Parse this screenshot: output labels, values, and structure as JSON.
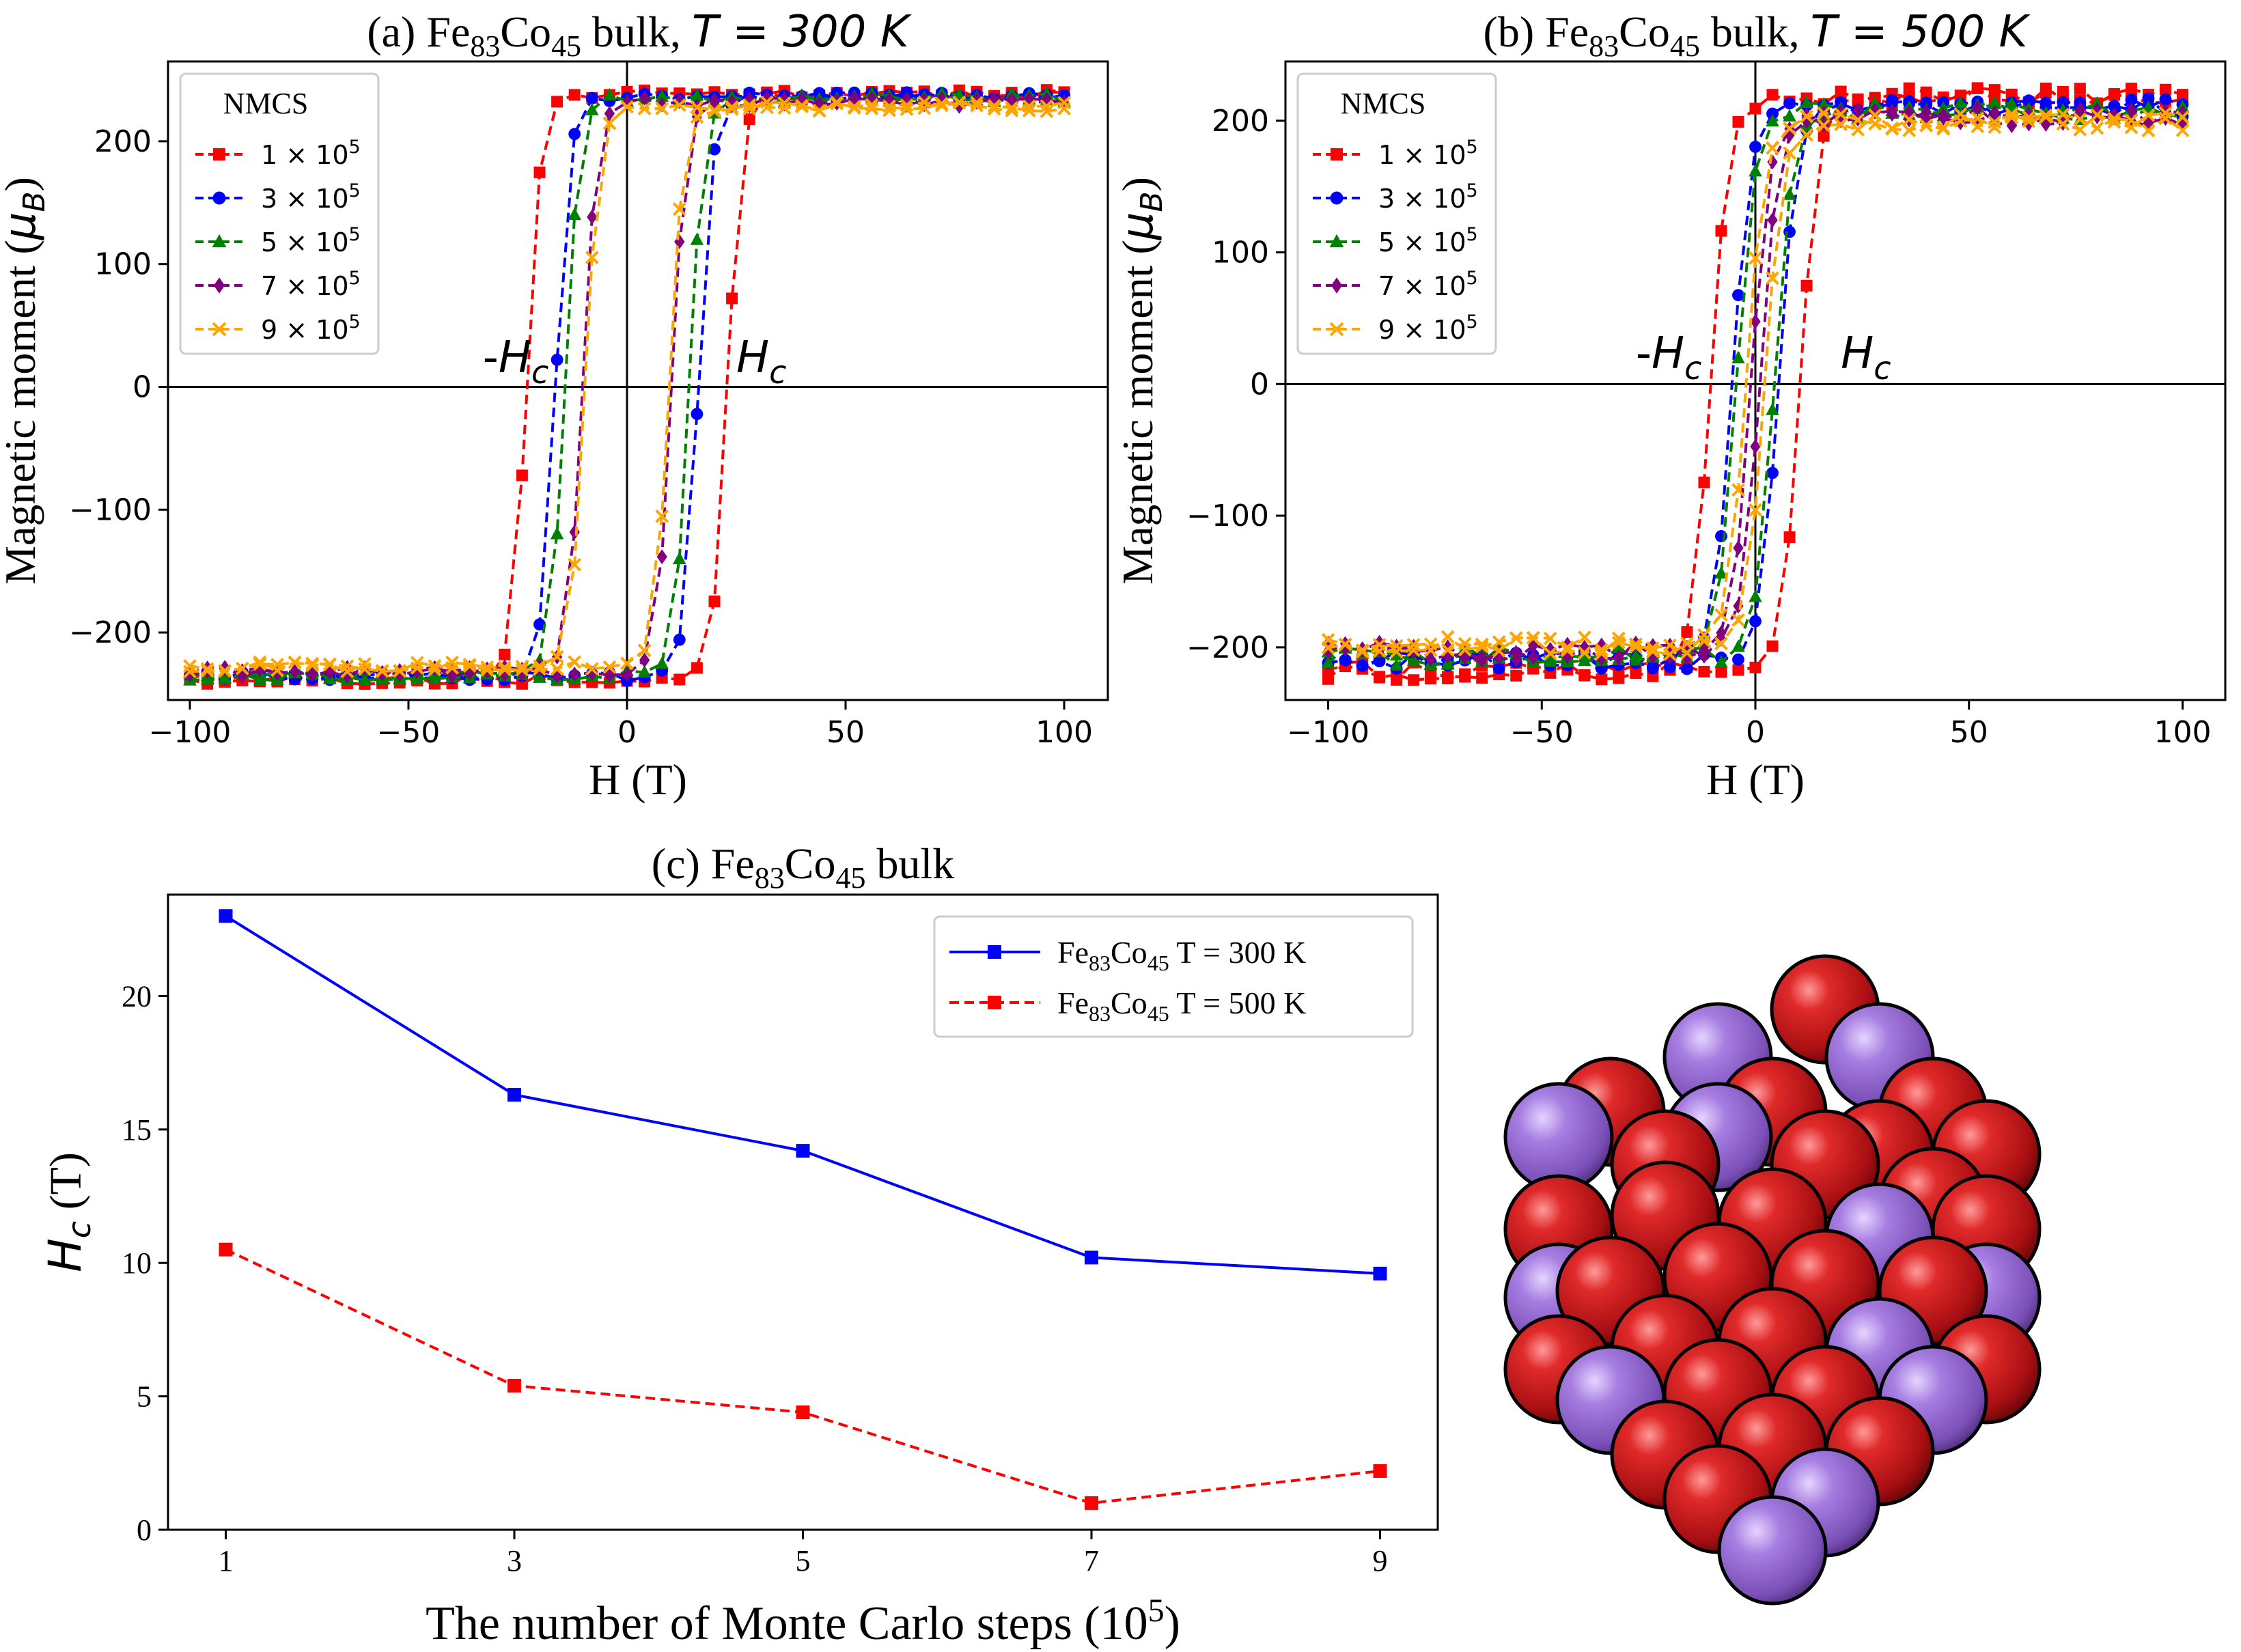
{
  "colors": {
    "red": "#ff0000",
    "blue": "#0000ff",
    "green": "#008000",
    "purple": "#800080",
    "orange": "#ffa500",
    "axis": "#000000",
    "atom_red": "#c0181a",
    "atom_purple": "#9b6fd0"
  },
  "chart_data": [
    {
      "id": "a",
      "type": "line",
      "title_prefix": "(a) Fe",
      "title_sub1": "83",
      "title_mid": "Co",
      "title_sub2": "45",
      "title_bulk": " bulk, ",
      "title_math": "T = 300 K",
      "xlabel": "H (T)",
      "ylabel_text": "Magnetic moment (",
      "ylabel_math": "μ",
      "ylabel_sub": "B",
      "ylabel_close": ")",
      "xlim": [
        -105,
        110
      ],
      "ylim": [
        -255,
        265
      ],
      "xticks": [
        -100,
        -50,
        0,
        50,
        100
      ],
      "xtick_labels": [
        "−100",
        "−50",
        "0",
        "50",
        "100"
      ],
      "yticks": [
        -200,
        -100,
        0,
        100,
        200
      ],
      "ytick_labels": [
        "−200",
        "−100",
        "0",
        "100",
        "200"
      ],
      "annotations": [
        {
          "text": "-H",
          "sub": "c",
          "x": -33,
          "y": 12
        },
        {
          "text": "H",
          "sub": "c",
          "x": 25,
          "y": 12
        }
      ],
      "legend": {
        "title": "NMCS",
        "placement": "upper-left"
      },
      "series": [
        {
          "name": "1 × 10⁵",
          "base": "1 × 10",
          "exp": "5",
          "marker": "square",
          "color": "red",
          "hc": 23,
          "sat": 238
        },
        {
          "name": "3 × 10⁵",
          "base": "3 × 10",
          "exp": "5",
          "marker": "circle",
          "color": "blue",
          "hc": 16.3,
          "sat": 236
        },
        {
          "name": "5 × 10⁵",
          "base": "5 × 10",
          "exp": "5",
          "marker": "triangle",
          "color": "green",
          "hc": 14.2,
          "sat": 235
        },
        {
          "name": "7 × 10⁵",
          "base": "7 × 10",
          "exp": "5",
          "marker": "diamond",
          "color": "purple",
          "hc": 10.2,
          "sat": 232
        },
        {
          "name": "9 × 10⁵",
          "base": "9 × 10",
          "exp": "5",
          "marker": "x",
          "color": "orange",
          "hc": 9.6,
          "sat": 228
        }
      ]
    },
    {
      "id": "b",
      "type": "line",
      "title_prefix": "(b) Fe",
      "title_sub1": "83",
      "title_mid": "Co",
      "title_sub2": "45",
      "title_bulk": " bulk, ",
      "title_math": "T = 500 K",
      "xlabel": "H (T)",
      "ylabel_text": "Magnetic moment (",
      "ylabel_math": "μ",
      "ylabel_sub": "B",
      "ylabel_close": ")",
      "xlim": [
        -110,
        110
      ],
      "ylim": [
        -240,
        245
      ],
      "xticks": [
        -100,
        -50,
        0,
        50,
        100
      ],
      "xtick_labels": [
        "−100",
        "−50",
        "0",
        "50",
        "100"
      ],
      "yticks": [
        -200,
        -100,
        0,
        100,
        200
      ],
      "ytick_labels": [
        "−200",
        "−100",
        "0",
        "100",
        "200"
      ],
      "annotations": [
        {
          "text": "-H",
          "sub": "c",
          "x": -28,
          "y": 12
        },
        {
          "text": "H",
          "sub": "c",
          "x": 20,
          "y": 12
        }
      ],
      "legend": {
        "title": "NMCS",
        "placement": "upper-left"
      },
      "series": [
        {
          "name": "1 × 10⁵",
          "base": "1 × 10",
          "exp": "5",
          "marker": "square",
          "color": "red",
          "hc": 10.5,
          "sat": 218
        },
        {
          "name": "3 × 10⁵",
          "base": "3 × 10",
          "exp": "5",
          "marker": "circle",
          "color": "blue",
          "hc": 5.4,
          "sat": 210
        },
        {
          "name": "5 × 10⁵",
          "base": "5 × 10",
          "exp": "5",
          "marker": "triangle",
          "color": "green",
          "hc": 4.4,
          "sat": 207
        },
        {
          "name": "7 × 10⁵",
          "base": "7 × 10",
          "exp": "5",
          "marker": "diamond",
          "color": "purple",
          "hc": 1.0,
          "sat": 203
        },
        {
          "name": "9 × 10⁵",
          "base": "9 × 10",
          "exp": "5",
          "marker": "x",
          "color": "orange",
          "hc": 2.2,
          "sat": 199
        }
      ]
    },
    {
      "id": "c",
      "type": "line",
      "title_prefix": "(c) Fe",
      "title_sub1": "83",
      "title_mid": "Co",
      "title_sub2": "45",
      "title_bulk": " bulk",
      "xlabel_text": "The number of Monte Carlo steps (10",
      "xlabel_exp": "5",
      "xlabel_close": ")",
      "ylabel_math": "H",
      "ylabel_sub": "c",
      "ylabel_text": " (T)",
      "xlim": [
        0.6,
        9.4
      ],
      "ylim": [
        0,
        23.8
      ],
      "xticks": [
        1,
        3,
        5,
        7,
        9
      ],
      "xtick_labels": [
        "1",
        "3",
        "5",
        "7",
        "9"
      ],
      "yticks": [
        0,
        5,
        10,
        15,
        20
      ],
      "ytick_labels": [
        "0",
        "5",
        "10",
        "15",
        "20"
      ],
      "legend": {
        "placement": "upper-right"
      },
      "series": [
        {
          "name": "Fe83Co45 T = 300 K",
          "label_a": "Fe",
          "label_s1": "83",
          "label_b": "Co",
          "label_s2": "45",
          "label_c": " T = 300 K",
          "color": "blue",
          "dash": "solid",
          "x": [
            1,
            3,
            5,
            7,
            9
          ],
          "values": [
            23.0,
            16.3,
            14.2,
            10.2,
            9.6
          ]
        },
        {
          "name": "Fe83Co45 T = 500 K",
          "label_a": "Fe",
          "label_s1": "83",
          "label_b": "Co",
          "label_s2": "45",
          "label_c": " T = 500 K",
          "color": "red",
          "dash": "dashed",
          "x": [
            1,
            3,
            5,
            7,
            9
          ],
          "values": [
            10.5,
            5.4,
            4.4,
            1.0,
            2.2
          ]
        }
      ]
    }
  ]
}
